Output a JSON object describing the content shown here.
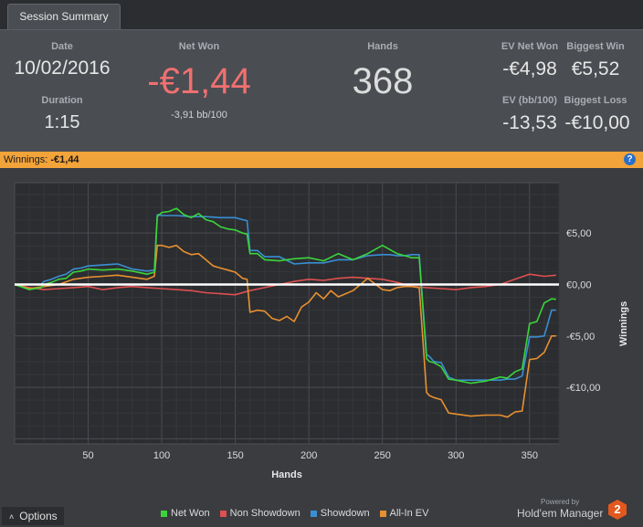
{
  "tab": {
    "label": "Session Summary"
  },
  "summary": {
    "date_label": "Date",
    "date": "10/02/2016",
    "duration_label": "Duration",
    "duration": "1:15",
    "net_won_label": "Net Won",
    "net_won": "-€1,44",
    "net_won_bb": "-3,91 bb/100",
    "hands_label": "Hands",
    "hands": "368",
    "ev_net_won_label": "EV Net Won",
    "ev_net_won": "-€4,98",
    "ev_bb_label": "EV (bb/100)",
    "ev_bb": "-13,53",
    "biggest_win_label": "Biggest Win",
    "biggest_win": "€5,52",
    "biggest_loss_label": "Biggest Loss",
    "biggest_loss": "-€10,00",
    "net_won_color": "#f07070"
  },
  "bar": {
    "label": "Winnings:",
    "value": "-€1,44",
    "help_icon": "?"
  },
  "chart_data": {
    "type": "line",
    "xlabel": "Hands",
    "ylabel": "Winnings",
    "xlim": [
      0,
      370
    ],
    "ylim": [
      -15.5,
      9.9
    ],
    "x_ticks": [
      50,
      100,
      150,
      200,
      250,
      300,
      350
    ],
    "y_ticks": [
      5,
      0,
      -5,
      -10
    ],
    "y_tick_labels": [
      "€5,00",
      "€0,00",
      "-€5,00",
      "-€10,00"
    ],
    "grid": true,
    "legend_position": "bottom",
    "series": [
      {
        "name": "Net Won",
        "color": "#3bd43b",
        "x": [
          0,
          10,
          18,
          20,
          25,
          30,
          35,
          40,
          45,
          50,
          60,
          70,
          80,
          90,
          95,
          97,
          100,
          105,
          110,
          115,
          120,
          125,
          130,
          135,
          140,
          145,
          150,
          155,
          158,
          160,
          165,
          170,
          180,
          190,
          200,
          210,
          220,
          230,
          240,
          250,
          255,
          260,
          265,
          270,
          275,
          280,
          282,
          285,
          290,
          295,
          300,
          310,
          320,
          330,
          335,
          340,
          345,
          350,
          355,
          360,
          365,
          368
        ],
        "y": [
          0,
          -0.5,
          -0.3,
          0,
          0.2,
          0.5,
          0.6,
          1.2,
          1.3,
          1.5,
          1.4,
          1.5,
          1.3,
          1.0,
          1.2,
          6.6,
          7.0,
          7.1,
          7.4,
          6.8,
          6.5,
          6.9,
          6.3,
          6.1,
          5.6,
          5.4,
          5.3,
          5.0,
          4.9,
          3.0,
          3.0,
          2.4,
          2.3,
          2.5,
          2.6,
          2.3,
          3.0,
          2.4,
          3.0,
          3.8,
          3.4,
          3.0,
          2.8,
          2.6,
          2.6,
          -7.2,
          -7.5,
          -7.6,
          -8.0,
          -9.2,
          -9.3,
          -9.6,
          -9.4,
          -9.0,
          -9.1,
          -8.5,
          -8.2,
          -3.8,
          -3.6,
          -1.8,
          -1.4,
          -1.44
        ]
      },
      {
        "name": "Non Showdown",
        "color": "#e05050",
        "x": [
          0,
          10,
          20,
          30,
          40,
          50,
          60,
          70,
          80,
          90,
          100,
          110,
          120,
          130,
          140,
          150,
          160,
          170,
          180,
          190,
          200,
          210,
          220,
          230,
          240,
          250,
          260,
          270,
          280,
          290,
          300,
          310,
          320,
          330,
          340,
          350,
          360,
          368
        ],
        "y": [
          0,
          -0.3,
          -0.5,
          -0.4,
          -0.3,
          -0.2,
          -0.5,
          -0.3,
          -0.2,
          -0.3,
          -0.4,
          -0.5,
          -0.6,
          -0.8,
          -0.9,
          -1.0,
          -0.6,
          -0.3,
          0.0,
          0.3,
          0.5,
          0.4,
          0.6,
          0.7,
          0.6,
          0.5,
          0.2,
          -0.2,
          -0.3,
          -0.4,
          -0.5,
          -0.3,
          -0.2,
          0.0,
          0.5,
          1.0,
          0.8,
          0.9
        ]
      },
      {
        "name": "Showdown",
        "color": "#3a8fd4",
        "x": [
          0,
          18,
          20,
          25,
          30,
          35,
          40,
          45,
          50,
          60,
          70,
          80,
          90,
          95,
          97,
          100,
          110,
          120,
          130,
          140,
          150,
          155,
          158,
          160,
          165,
          170,
          180,
          190,
          200,
          210,
          220,
          230,
          240,
          250,
          255,
          260,
          265,
          270,
          275,
          280,
          282,
          285,
          290,
          295,
          300,
          310,
          320,
          330,
          335,
          340,
          345,
          350,
          355,
          360,
          365,
          368
        ],
        "y": [
          0,
          0,
          0.3,
          0.5,
          0.8,
          1.0,
          1.5,
          1.6,
          1.8,
          1.9,
          2.0,
          1.5,
          1.3,
          1.4,
          6.8,
          6.7,
          6.7,
          6.6,
          6.6,
          6.5,
          6.5,
          6.3,
          6.2,
          3.3,
          3.3,
          2.7,
          2.7,
          2.0,
          2.1,
          2.1,
          2.4,
          2.4,
          2.8,
          2.9,
          2.9,
          2.8,
          2.8,
          2.9,
          2.9,
          -6.8,
          -7.0,
          -7.5,
          -7.6,
          -9.0,
          -9.3,
          -9.3,
          -9.3,
          -9.3,
          -9.2,
          -9.2,
          -8.9,
          -5.1,
          -5.1,
          -5.0,
          -2.5,
          -2.5
        ]
      },
      {
        "name": "All-In EV",
        "color": "#e89030",
        "x": [
          0,
          10,
          20,
          30,
          40,
          50,
          60,
          70,
          80,
          90,
          95,
          97,
          100,
          105,
          110,
          115,
          120,
          125,
          130,
          135,
          140,
          145,
          150,
          155,
          158,
          160,
          165,
          170,
          175,
          180,
          185,
          190,
          195,
          200,
          205,
          210,
          215,
          220,
          230,
          240,
          250,
          255,
          260,
          265,
          270,
          275,
          280,
          282,
          285,
          290,
          295,
          300,
          310,
          320,
          330,
          335,
          340,
          345,
          350,
          355,
          360,
          365,
          368
        ],
        "y": [
          0,
          -0.4,
          -0.2,
          0.0,
          0.5,
          0.7,
          0.8,
          0.9,
          0.7,
          0.5,
          0.8,
          3.8,
          3.8,
          3.6,
          3.8,
          3.2,
          2.9,
          3.0,
          2.4,
          1.8,
          1.6,
          1.4,
          1.2,
          0.6,
          0.5,
          -2.7,
          -2.5,
          -2.6,
          -3.3,
          -3.5,
          -3.1,
          -3.6,
          -2.2,
          -1.7,
          -0.8,
          -1.4,
          -0.6,
          -1.2,
          -0.6,
          0.6,
          -0.5,
          -0.6,
          -0.3,
          -0.2,
          -0.2,
          -0.3,
          -10.5,
          -10.8,
          -11.0,
          -11.2,
          -12.5,
          -12.6,
          -12.8,
          -12.7,
          -12.7,
          -12.9,
          -12.4,
          -12.3,
          -7.3,
          -7.2,
          -6.6,
          -5.0,
          -5.0
        ]
      }
    ],
    "zero_line_color": "#ffffff"
  },
  "footer": {
    "options_label": "Options",
    "options_icon": "chevron-up-icon",
    "powered_by": "Powered by",
    "brand": "Hold'em Manager",
    "logo_text": "2",
    "legend": [
      "Net Won",
      "Non Showdown",
      "Showdown",
      "All-In EV"
    ]
  }
}
